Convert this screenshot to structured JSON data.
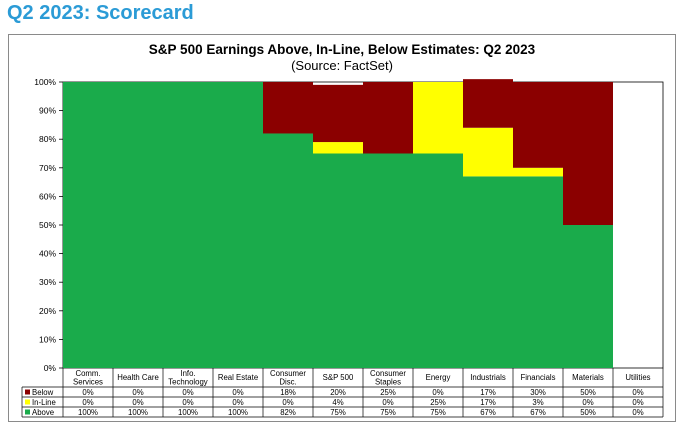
{
  "page": {
    "title": "Q2 2023: Scorecard"
  },
  "colors": {
    "page_title": "#2b9bd6",
    "above": "#1aab4b",
    "inline": "#ffff00",
    "below": "#8b0000"
  },
  "chart_data": {
    "type": "bar",
    "stacked": true,
    "title": "S&P 500 Earnings Above, In-Line, Below Estimates: Q2 2023",
    "subtitle": "(Source: FactSet)",
    "categories": [
      [
        "Comm.",
        "Services"
      ],
      [
        "Health Care"
      ],
      [
        "Info.",
        "Technology"
      ],
      [
        "Real Estate"
      ],
      [
        "Consumer",
        "Disc."
      ],
      [
        "S&P 500"
      ],
      [
        "Consumer",
        "Staples"
      ],
      [
        "Energy"
      ],
      [
        "Industrials"
      ],
      [
        "Financials"
      ],
      [
        "Materials"
      ],
      [
        "Utilities"
      ]
    ],
    "y_ticks": [
      "0%",
      "10%",
      "20%",
      "30%",
      "40%",
      "50%",
      "60%",
      "70%",
      "80%",
      "90%",
      "100%"
    ],
    "ylim": [
      0,
      100
    ],
    "grid": false,
    "series": [
      {
        "name": "Above",
        "color": "#1aab4b",
        "values": [
          100,
          100,
          100,
          100,
          82,
          75,
          75,
          75,
          67,
          67,
          50,
          0
        ]
      },
      {
        "name": "In-Line",
        "color": "#ffff00",
        "values": [
          0,
          0,
          0,
          0,
          0,
          4,
          0,
          25,
          17,
          3,
          0,
          0
        ]
      },
      {
        "name": "Below",
        "color": "#8b0000",
        "values": [
          0,
          0,
          0,
          0,
          18,
          20,
          25,
          0,
          17,
          30,
          50,
          0
        ]
      }
    ],
    "table": {
      "rows": [
        {
          "name": "Below",
          "color": "#8b0000",
          "cells": [
            "0%",
            "0%",
            "0%",
            "0%",
            "18%",
            "20%",
            "25%",
            "0%",
            "17%",
            "30%",
            "50%",
            "0%"
          ]
        },
        {
          "name": "In-Line",
          "color": "#ffff00",
          "cells": [
            "0%",
            "0%",
            "0%",
            "0%",
            "0%",
            "4%",
            "0%",
            "25%",
            "17%",
            "3%",
            "0%",
            "0%"
          ]
        },
        {
          "name": "Above",
          "color": "#1aab4b",
          "cells": [
            "100%",
            "100%",
            "100%",
            "100%",
            "82%",
            "75%",
            "75%",
            "75%",
            "67%",
            "67%",
            "50%",
            "0%"
          ]
        }
      ]
    }
  }
}
